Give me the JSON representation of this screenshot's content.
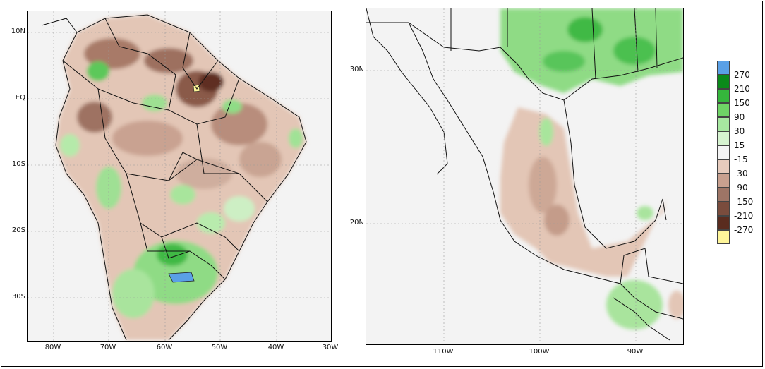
{
  "south_america_map": {
    "lat_labels": [
      "10N",
      "EQ",
      "10S",
      "20S",
      "30S"
    ],
    "lon_labels": [
      "80W",
      "70W",
      "60W",
      "50W",
      "40W",
      "30W"
    ]
  },
  "mexico_map": {
    "lat_labels": [
      "30N",
      "20N"
    ],
    "lon_labels": [
      "110W",
      "100W",
      "90W"
    ]
  },
  "legend": {
    "labels": [
      "270",
      "210",
      "150",
      "90",
      "30",
      "15",
      "-15",
      "-30",
      "-90",
      "-150",
      "-210",
      "-270"
    ],
    "colors": [
      "#5aa0e6",
      "#0b8a1a",
      "#35b63c",
      "#6fd466",
      "#a7e8a0",
      "#d6f3d0",
      "#f4f4f4",
      "#e6cbbd",
      "#c8a08f",
      "#9e7566",
      "#7a4c3d",
      "#5a2c1f",
      "#fff69a"
    ]
  }
}
